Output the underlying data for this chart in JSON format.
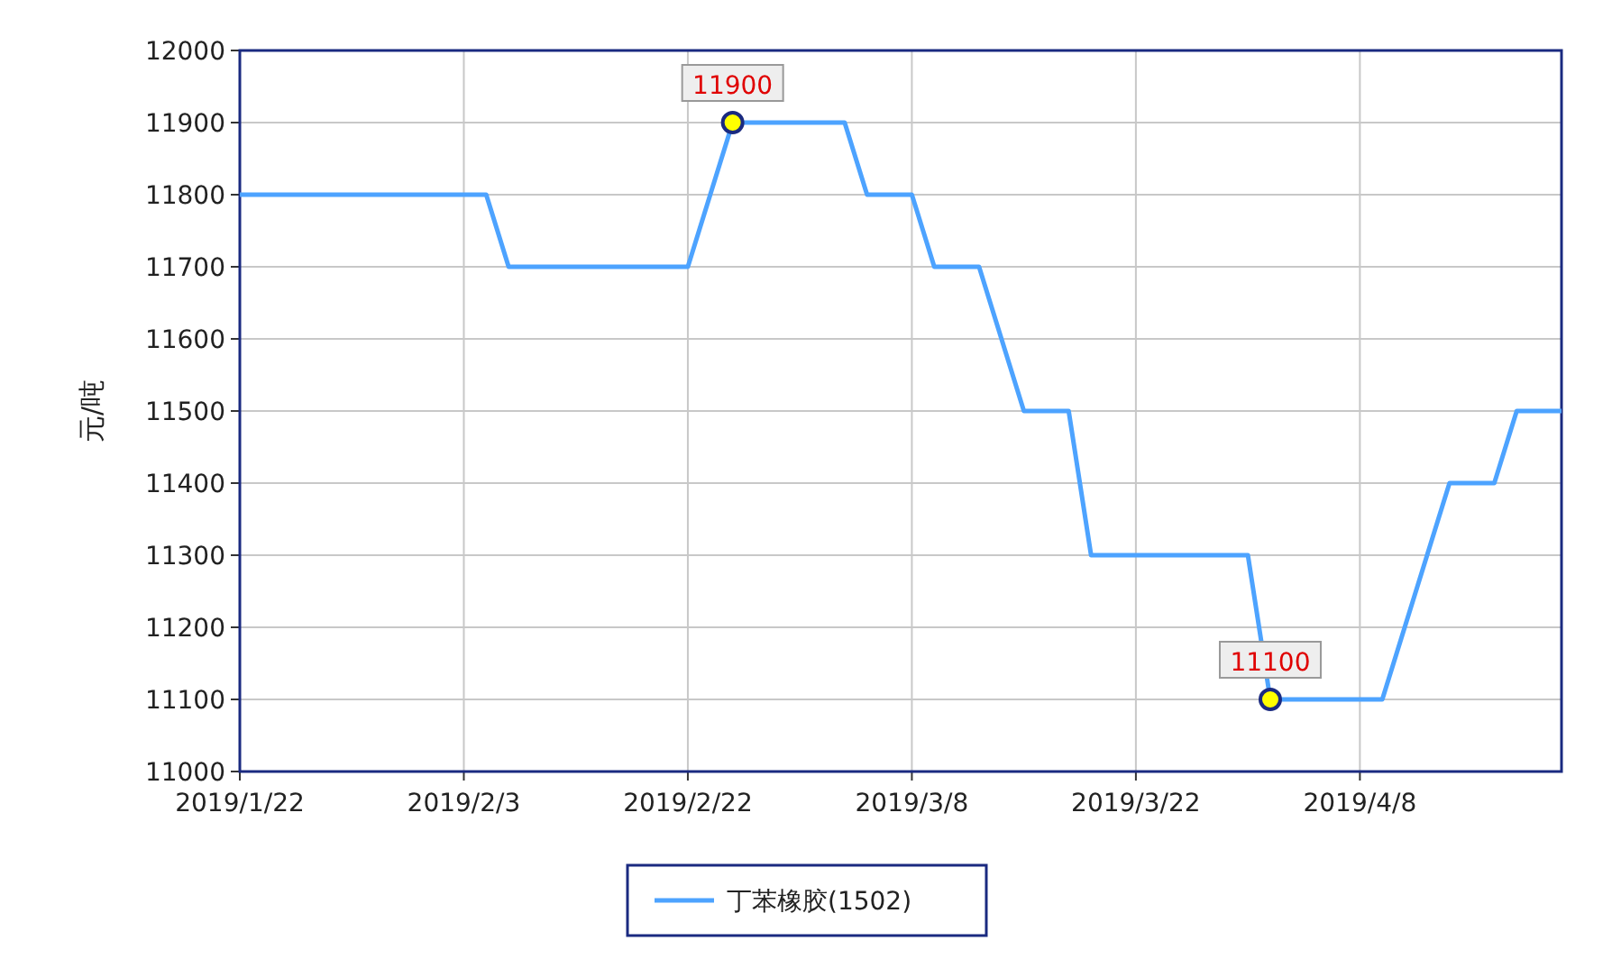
{
  "chart_data": {
    "type": "line",
    "ylabel": "元/吨",
    "categories": [
      "2019/1/22",
      null,
      null,
      null,
      null,
      null,
      null,
      null,
      null,
      null,
      "2019/2/3",
      null,
      null,
      null,
      null,
      null,
      null,
      null,
      null,
      null,
      "2019/2/22",
      null,
      null,
      null,
      null,
      null,
      null,
      null,
      null,
      null,
      "2019/3/8",
      null,
      null,
      null,
      null,
      null,
      null,
      null,
      null,
      null,
      "2019/3/22",
      null,
      null,
      null,
      null,
      null,
      null,
      null,
      null,
      null,
      "2019/4/8",
      null,
      null,
      null,
      null,
      null,
      null,
      null,
      null,
      null
    ],
    "series": [
      {
        "name": "丁苯橡胶(1502)",
        "color": "#4da3ff",
        "values": [
          11800,
          11800,
          11800,
          11800,
          11800,
          11800,
          11800,
          11800,
          11800,
          11800,
          11800,
          11800,
          11700,
          11700,
          11700,
          11700,
          11700,
          11700,
          11700,
          11700,
          11700,
          11800,
          11900,
          11900,
          11900,
          11900,
          11900,
          11900,
          11800,
          11800,
          11800,
          11700,
          11700,
          11700,
          11600,
          11500,
          11500,
          11500,
          11300,
          11300,
          11300,
          11300,
          11300,
          11300,
          11300,
          11300,
          11100,
          11100,
          11100,
          11100,
          11100,
          11100,
          11200,
          11300,
          11400,
          11400,
          11400,
          11500,
          11500,
          11500
        ]
      }
    ],
    "ylim": [
      11000,
      12000
    ],
    "yticks": [
      11000,
      11100,
      11200,
      11300,
      11400,
      11500,
      11600,
      11700,
      11800,
      11900,
      12000
    ],
    "grid": true,
    "legend": "bottom",
    "marker": "none",
    "line_style": "solid",
    "annotations": [
      {
        "text": "11900",
        "y": 11900
      },
      {
        "text": "11100",
        "y": 11100
      }
    ]
  }
}
